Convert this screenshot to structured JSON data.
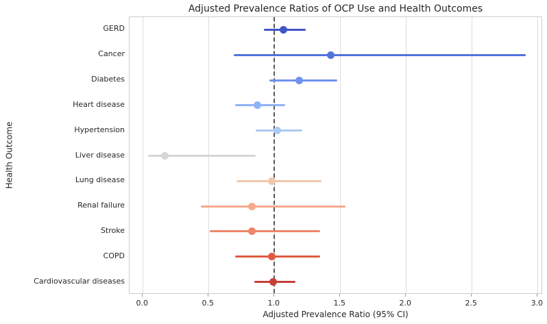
{
  "chart_data": {
    "type": "scatter",
    "variant": "forest-plot-with-error-bars",
    "title": "Adjusted Prevalence Ratios of OCP Use and Health Outcomes",
    "xlabel": "Adjusted Prevalence Ratio (95% CI)",
    "ylabel": "Health Outcome",
    "xlim": [
      -0.1,
      3.04
    ],
    "grid": {
      "vertical": true,
      "horizontal": false,
      "color": "#dcdcdc"
    },
    "x_ticks": {
      "values": [
        0.0,
        0.5,
        1.0,
        1.5,
        2.0,
        2.5,
        3.0
      ],
      "labels": [
        "0.0",
        "0.5",
        "1.0",
        "1.5",
        "2.0",
        "2.5",
        "3.0"
      ]
    },
    "reference_line": {
      "x": 1.0,
      "style": "dashed",
      "color": "#555555"
    },
    "categories": [
      "GERD",
      "Cancer",
      "Diabetes",
      "Heart disease",
      "Hypertension",
      "Liver disease",
      "Lung disease",
      "Renal failure",
      "Stroke",
      "COPD",
      "Cardiovascular diseases"
    ],
    "points": [
      {
        "label": "GERD",
        "pr": 1.07,
        "ci_low": 0.92,
        "ci_high": 1.24,
        "color": "#4055c8"
      },
      {
        "label": "Cancer",
        "pr": 1.43,
        "ci_low": 0.69,
        "ci_high": 2.91,
        "color": "#5273dd"
      },
      {
        "label": "Diabetes",
        "pr": 1.19,
        "ci_low": 0.96,
        "ci_high": 1.48,
        "color": "#6f93f0"
      },
      {
        "label": "Heart disease",
        "pr": 0.87,
        "ci_low": 0.7,
        "ci_high": 1.08,
        "color": "#8fb2f8"
      },
      {
        "label": "Hypertension",
        "pr": 1.02,
        "ci_low": 0.86,
        "ci_high": 1.21,
        "color": "#accaf2"
      },
      {
        "label": "Liver disease",
        "pr": 0.17,
        "ci_low": 0.04,
        "ci_high": 0.86,
        "color": "#d6d6d6"
      },
      {
        "label": "Lung disease",
        "pr": 0.98,
        "ci_low": 0.71,
        "ci_high": 1.36,
        "color": "#f3c7ab"
      },
      {
        "label": "Renal failure",
        "pr": 0.83,
        "ci_low": 0.44,
        "ci_high": 1.54,
        "color": "#f6a98a"
      },
      {
        "label": "Stroke",
        "pr": 0.83,
        "ci_low": 0.51,
        "ci_high": 1.35,
        "color": "#ee8568"
      },
      {
        "label": "COPD",
        "pr": 0.98,
        "ci_low": 0.7,
        "ci_high": 1.35,
        "color": "#de5b42"
      },
      {
        "label": "Cardiovascular diseases",
        "pr": 0.99,
        "ci_low": 0.85,
        "ci_high": 1.16,
        "color": "#c63f36"
      }
    ]
  }
}
